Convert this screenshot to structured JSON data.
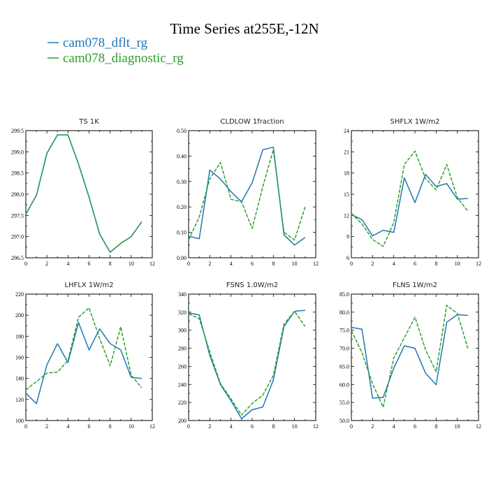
{
  "title": "Time Series at255E,-12N",
  "legend": [
    {
      "label": "cam078_dflt_rg",
      "color": "#1f77b4"
    },
    {
      "label": "cam078_diagnostic_rg",
      "color": "#2ca02c"
    }
  ],
  "chart_data": [
    {
      "type": "line",
      "title": "TS   1K",
      "x": [
        0,
        1,
        2,
        3,
        4,
        5,
        6,
        7,
        8,
        9,
        10,
        11
      ],
      "xlim": [
        0,
        12
      ],
      "xticks": [
        "0",
        "2",
        "4",
        "6",
        "8",
        "10",
        "12"
      ],
      "ylim": [
        296.5,
        299.5
      ],
      "yticks": [
        "296.5",
        "297.0",
        "297.5",
        "298.0",
        "298.5",
        "299.0",
        "299.5"
      ],
      "series": [
        {
          "name": "cam078_dflt_rg",
          "color": "#1f77b4",
          "dashed": false,
          "values": [
            297.53,
            297.97,
            298.97,
            299.4,
            299.4,
            298.71,
            297.93,
            297.06,
            296.63,
            296.84,
            297.0,
            297.35
          ]
        },
        {
          "name": "cam078_diagnostic_rg",
          "color": "#2ca02c",
          "dashed": true,
          "values": [
            297.53,
            297.97,
            298.97,
            299.4,
            299.4,
            298.71,
            297.93,
            297.06,
            296.63,
            296.84,
            297.0,
            297.35
          ]
        }
      ]
    },
    {
      "type": "line",
      "title": "CLDLOW   1fraction",
      "x": [
        0,
        1,
        2,
        3,
        4,
        5,
        6,
        7,
        8,
        9,
        10,
        11
      ],
      "xlim": [
        0,
        12
      ],
      "xticks": [
        "0",
        "2",
        "4",
        "6",
        "8",
        "10",
        "12"
      ],
      "ylim": [
        0,
        0.5
      ],
      "yticks": [
        "0.00",
        "0.10",
        "0.20",
        "0.30",
        "0.40",
        "0.50"
      ],
      "series": [
        {
          "name": "cam078_dflt_rg",
          "color": "#1f77b4",
          "dashed": false,
          "values": [
            0.085,
            0.075,
            0.345,
            0.31,
            0.26,
            0.22,
            0.295,
            0.425,
            0.435,
            0.09,
            0.05,
            0.08
          ]
        },
        {
          "name": "cam078_diagnostic_rg",
          "color": "#2ca02c",
          "dashed": true,
          "values": [
            0.07,
            0.16,
            0.31,
            0.375,
            0.23,
            0.22,
            0.115,
            0.28,
            0.425,
            0.1,
            0.07,
            0.2
          ]
        }
      ]
    },
    {
      "type": "line",
      "title": "SHFLX   1W/m2",
      "x": [
        0,
        1,
        2,
        3,
        4,
        5,
        6,
        7,
        8,
        9,
        10,
        11
      ],
      "xlim": [
        0,
        12
      ],
      "xticks": [
        "0",
        "2",
        "4",
        "6",
        "8",
        "10",
        "12"
      ],
      "ylim": [
        6,
        24
      ],
      "yticks": [
        "6",
        "9",
        "12",
        "15",
        "18",
        "21",
        "24"
      ],
      "series": [
        {
          "name": "cam078_dflt_rg",
          "color": "#1f77b4",
          "dashed": false,
          "values": [
            12.1,
            11.4,
            9.1,
            9.9,
            9.6,
            17.3,
            13.8,
            17.8,
            16.1,
            16.5,
            14.3,
            14.4
          ]
        },
        {
          "name": "cam078_diagnostic_rg",
          "color": "#2ca02c",
          "dashed": true,
          "values": [
            12.3,
            10.8,
            8.6,
            7.6,
            11.0,
            19.2,
            21.1,
            17.2,
            15.6,
            19.2,
            14.5,
            12.6
          ]
        }
      ]
    },
    {
      "type": "line",
      "title": "LHFLX   1W/m2",
      "x": [
        0,
        1,
        2,
        3,
        4,
        5,
        6,
        7,
        8,
        9,
        10,
        11
      ],
      "xlim": [
        0,
        12
      ],
      "xticks": [
        "0",
        "2",
        "4",
        "6",
        "8",
        "10",
        "12"
      ],
      "ylim": [
        100,
        220
      ],
      "yticks": [
        "100",
        "120",
        "140",
        "160",
        "180",
        "200",
        "220"
      ],
      "series": [
        {
          "name": "cam078_dflt_rg",
          "color": "#1f77b4",
          "dashed": false,
          "values": [
            126,
            116,
            153,
            173,
            155,
            193,
            167,
            187,
            173,
            167,
            141,
            140
          ]
        },
        {
          "name": "cam078_diagnostic_rg",
          "color": "#2ca02c",
          "dashed": true,
          "values": [
            129,
            137,
            145,
            146,
            157,
            198,
            207,
            178,
            152,
            189,
            143,
            131
          ]
        }
      ]
    },
    {
      "type": "line",
      "title": "FSNS   1.0W/m2",
      "x": [
        0,
        1,
        2,
        3,
        4,
        5,
        6,
        7,
        8,
        9,
        10,
        11
      ],
      "xlim": [
        0,
        12
      ],
      "xticks": [
        "0",
        "2",
        "4",
        "6",
        "8",
        "10",
        "12"
      ],
      "ylim": [
        200,
        340
      ],
      "yticks": [
        "200",
        "220",
        "240",
        "260",
        "280",
        "300",
        "320",
        "340"
      ],
      "series": [
        {
          "name": "cam078_dflt_rg",
          "color": "#1f77b4",
          "dashed": false,
          "values": [
            319,
            317,
            272,
            240,
            222,
            202,
            212,
            215,
            245,
            304,
            321,
            322
          ]
        },
        {
          "name": "cam078_diagnostic_rg",
          "color": "#2ca02c",
          "dashed": true,
          "values": [
            318,
            313,
            276,
            241,
            224,
            206,
            219,
            228,
            250,
            307,
            321,
            304
          ]
        }
      ]
    },
    {
      "type": "line",
      "title": "FLNS   1W/m2",
      "x": [
        0,
        1,
        2,
        3,
        4,
        5,
        6,
        7,
        8,
        9,
        10,
        11
      ],
      "xlim": [
        0,
        12
      ],
      "xticks": [
        "0",
        "2",
        "4",
        "6",
        "8",
        "10",
        "12"
      ],
      "ylim": [
        50,
        85
      ],
      "yticks": [
        "50.0",
        "55.0",
        "60.0",
        "65.0",
        "70.0",
        "75.0",
        "80.0",
        "85.0"
      ],
      "series": [
        {
          "name": "cam078_dflt_rg",
          "color": "#1f77b4",
          "dashed": false,
          "values": [
            75.8,
            75.3,
            56.2,
            56.4,
            64.5,
            70.7,
            70.0,
            63.1,
            59.9,
            77.2,
            79.3,
            79.1
          ]
        },
        {
          "name": "cam078_diagnostic_rg",
          "color": "#2ca02c",
          "dashed": true,
          "values": [
            74.9,
            68.8,
            60.2,
            53.7,
            67.3,
            72.9,
            78.6,
            69.6,
            63.5,
            81.9,
            79.6,
            70.0
          ]
        }
      ]
    }
  ]
}
